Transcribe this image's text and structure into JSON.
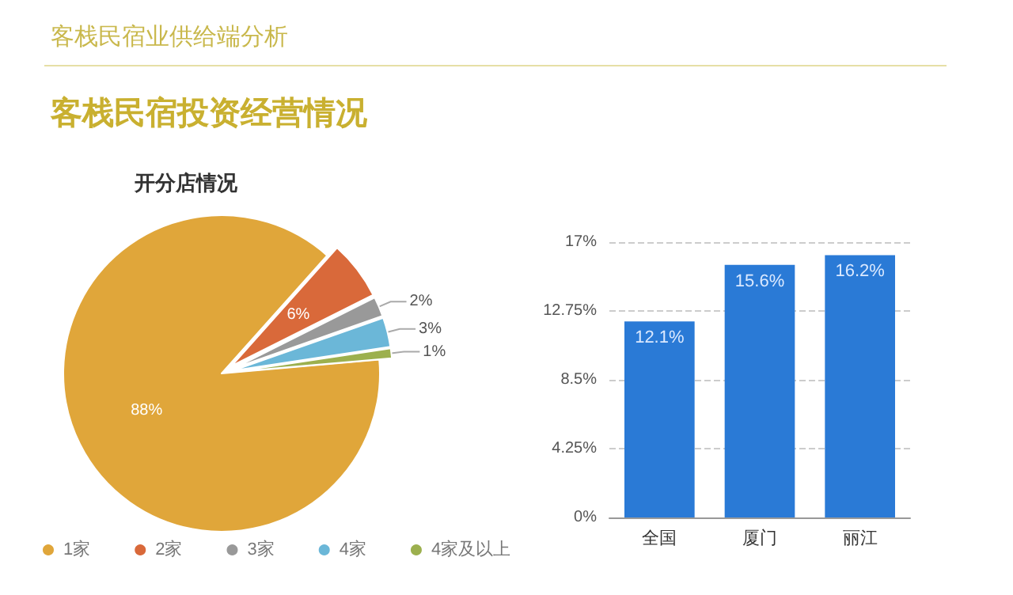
{
  "chart_data": [
    {
      "type": "pie",
      "title": "开分店情况",
      "annotations": [
        "客栈民宿业供给端分析",
        "客栈民宿投资经营情况"
      ],
      "categories": [
        "1家",
        "2家",
        "3家",
        "4家",
        "4家及以上"
      ],
      "values": [
        88,
        6,
        2,
        3,
        1
      ],
      "value_labels": [
        "88%",
        "6%",
        "2%",
        "3%",
        "1%"
      ],
      "colors": [
        "#e0a63a",
        "#d9693a",
        "#999999",
        "#6bb7d8",
        "#9cb04e"
      ],
      "legend": "bottom"
    },
    {
      "type": "bar",
      "categories": [
        "全国",
        "厦门",
        "丽江"
      ],
      "values": [
        12.1,
        15.6,
        16.2
      ],
      "value_labels": [
        "12.1%",
        "15.6%",
        "16.2%"
      ],
      "color": "#2a7ad6",
      "ylim": [
        0,
        17
      ],
      "yticks": [
        {
          "value": 0,
          "label": "0%"
        },
        {
          "value": 4.25,
          "label": "4.25%"
        },
        {
          "value": 8.5,
          "label": "8.5%"
        },
        {
          "value": 12.75,
          "label": "12.75%"
        },
        {
          "value": 17,
          "label": "17%"
        }
      ],
      "grid": "y"
    }
  ]
}
